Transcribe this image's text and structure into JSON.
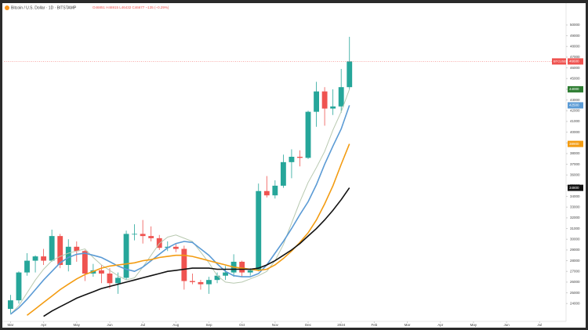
{
  "chart_data": {
    "type": "candlestick",
    "title": "Bitcoin / U.S. Dollar · 1D · BITSTAMP",
    "subtitle": "O46851 H46915 L46432 C46677 −135 (−0.29%)",
    "symbol": "BTCUSD",
    "xlim": [
      -0.2,
      16.8
    ],
    "xticks": [
      {
        "value": 0,
        "label": "Mar"
      },
      {
        "value": 1,
        "label": "Apr"
      },
      {
        "value": 2,
        "label": "May"
      },
      {
        "value": 3,
        "label": "Jun"
      },
      {
        "value": 4,
        "label": "Jul"
      },
      {
        "value": 5,
        "label": "Aug"
      },
      {
        "value": 6,
        "label": "Sep"
      },
      {
        "value": 7,
        "label": "Oct"
      },
      {
        "value": 8,
        "label": "Nov"
      },
      {
        "value": 9,
        "label": "Dec"
      },
      {
        "value": 10,
        "label": "2024"
      },
      {
        "value": 11,
        "label": "Feb"
      },
      {
        "value": 12,
        "label": "Mar"
      },
      {
        "value": 13,
        "label": "Apr"
      },
      {
        "value": 14,
        "label": "May"
      },
      {
        "value": 15,
        "label": "Jun"
      },
      {
        "value": 16,
        "label": "Jul"
      }
    ],
    "ylim": [
      22700,
      51750
    ],
    "yticks": [
      24000,
      25000,
      26000,
      27000,
      28000,
      29000,
      30000,
      31000,
      32000,
      33000,
      34000,
      35000,
      36000,
      37000,
      38000,
      39000,
      40000,
      41000,
      42000,
      43000,
      44000,
      45000,
      46000,
      47000,
      48000,
      49000,
      50000
    ],
    "up_color": "#26a69a",
    "down_color": "#ef5350",
    "candles": {
      "x": [
        0,
        0.25,
        0.5,
        0.75,
        1,
        1.25,
        1.5,
        1.75,
        2,
        2.25,
        2.5,
        2.75,
        3,
        3.25,
        3.5,
        3.75,
        4,
        4.25,
        4.5,
        4.75,
        5,
        5.25,
        5.5,
        5.75,
        6,
        6.25,
        6.5,
        6.75,
        7,
        7.25,
        7.5,
        7.75,
        8,
        8.25,
        8.5,
        8.75,
        9,
        9.25,
        9.5,
        9.75,
        10,
        10.25
      ],
      "open": [
        23500,
        24300,
        26900,
        28000,
        28400,
        28000,
        30300,
        27600,
        29300,
        28900,
        26800,
        27100,
        26800,
        25900,
        26400,
        30500,
        30500,
        30300,
        30100,
        29200,
        29300,
        29100,
        26100,
        26000,
        25800,
        26200,
        26600,
        26900,
        27900,
        26900,
        27100,
        34500,
        34100,
        35000,
        37200,
        37700,
        37600,
        41900,
        43800,
        42200,
        42400,
        44200
      ],
      "high": [
        24800,
        27000,
        28700,
        28500,
        29100,
        30900,
        30500,
        30000,
        29800,
        29000,
        27700,
        27600,
        27300,
        26900,
        30800,
        31400,
        31800,
        31200,
        30400,
        29800,
        29600,
        29400,
        26800,
        26200,
        26500,
        26900,
        27500,
        28600,
        28000,
        27300,
        35200,
        35900,
        35500,
        37900,
        38400,
        38300,
        42000,
        44700,
        44200,
        44000,
        45900,
        48900
      ],
      "low": [
        23100,
        24000,
        26600,
        26900,
        27600,
        27900,
        27300,
        27000,
        27900,
        26100,
        26500,
        25900,
        25400,
        24900,
        26200,
        29900,
        29600,
        29800,
        29000,
        28900,
        28800,
        25300,
        25800,
        25300,
        24900,
        25900,
        26200,
        26500,
        26500,
        26600,
        27000,
        33900,
        33800,
        34800,
        35700,
        36800,
        37500,
        40500,
        40600,
        41600,
        41800,
        44000
      ],
      "close": [
        24300,
        26900,
        28000,
        28400,
        28000,
        30300,
        27600,
        29300,
        28900,
        26800,
        27100,
        26800,
        25900,
        26400,
        30500,
        30500,
        30300,
        30100,
        29200,
        29300,
        29100,
        26100,
        26000,
        25800,
        26200,
        26600,
        26900,
        27900,
        26900,
        27100,
        34500,
        34100,
        35000,
        37200,
        37700,
        37600,
        41900,
        43800,
        42200,
        42400,
        44200,
        46600
      ]
    },
    "series": [
      {
        "color": "#b8c9b0",
        "tag_color": "#2e7d32",
        "values": [
          23000,
          23800,
          25000,
          26200,
          27200,
          28000,
          28400,
          28700,
          28900,
          29100,
          28300,
          27600,
          27100,
          26600,
          26200,
          26400,
          27400,
          28500,
          29600,
          30200,
          30400,
          30100,
          29800,
          28800,
          27800,
          26600,
          26000,
          25900,
          26000,
          26300,
          26600,
          27000,
          28000,
          29500,
          31500,
          33500,
          35300,
          36700,
          38200,
          40200,
          41900,
          44000
        ]
      },
      {
        "color": "#5b9bd5",
        "tag_color": "#5b9bd5",
        "values": [
          23000,
          23600,
          24400,
          25300,
          26200,
          27000,
          27800,
          28300,
          28600,
          28700,
          28500,
          28300,
          27900,
          27500,
          27200,
          27000,
          27400,
          28000,
          28600,
          29200,
          29600,
          29800,
          29700,
          29100,
          28500,
          27700,
          27000,
          26600,
          26500,
          26500,
          26800,
          27600,
          28700,
          29800,
          31000,
          32300,
          33500,
          35100,
          37000,
          38700,
          40300,
          42500
        ]
      },
      {
        "color": "#f39c12",
        "tag_color": "#f39c12",
        "values": [
          null,
          null,
          22900,
          23500,
          24100,
          24700,
          25300,
          25800,
          26300,
          26700,
          27000,
          27300,
          27500,
          27600,
          27700,
          27800,
          28000,
          28100,
          28300,
          28400,
          28500,
          28500,
          28400,
          28200,
          28000,
          27800,
          27600,
          27400,
          27300,
          27200,
          27100,
          27200,
          27600,
          28200,
          28900,
          29700,
          30600,
          31800,
          33300,
          35000,
          37000,
          38900
        ]
      },
      {
        "color": "#111111",
        "tag_color": "#111111",
        "values": [
          null,
          null,
          null,
          null,
          22800,
          23300,
          23700,
          24100,
          24500,
          24800,
          25100,
          25400,
          25600,
          25800,
          26000,
          26200,
          26400,
          26600,
          26800,
          27000,
          27100,
          27200,
          27300,
          27300,
          27300,
          27200,
          27200,
          27200,
          27200,
          27200,
          27300,
          27600,
          28000,
          28500,
          29000,
          29600,
          30300,
          31000,
          31800,
          32700,
          33700,
          34800
        ]
      }
    ]
  }
}
